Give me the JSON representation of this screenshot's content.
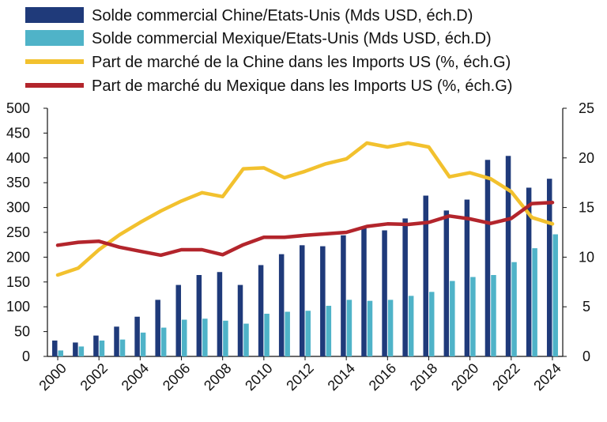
{
  "chart_data": {
    "type": "bar+line",
    "title": "",
    "xlabel": "",
    "ylabel_left": "",
    "ylabel_right": "",
    "categories": [
      "2000",
      "2001",
      "2002",
      "2003",
      "2004",
      "2005",
      "2006",
      "2007",
      "2008",
      "2009",
      "2010",
      "2011",
      "2012",
      "2013",
      "2014",
      "2015",
      "2016",
      "2017",
      "2018",
      "2019",
      "2020",
      "2021",
      "2022",
      "2023",
      "2024"
    ],
    "x_tick_labels": [
      "2000",
      "2002",
      "2004",
      "2006",
      "2008",
      "2010",
      "2012",
      "2014",
      "2016",
      "2018",
      "2020",
      "2022",
      "2024"
    ],
    "left_axis": {
      "min": 0,
      "max": 500,
      "ticks": [
        "0",
        "50",
        "100",
        "150",
        "200",
        "250",
        "300",
        "350",
        "400",
        "450",
        "500"
      ]
    },
    "right_axis": {
      "min": 0,
      "max": 25,
      "ticks": [
        "0",
        "5",
        "10",
        "15",
        "20",
        "25"
      ]
    },
    "grid": false,
    "legend_position": "top",
    "series": [
      {
        "name": "Solde commercial Chine/Etats-Unis (Mds USD, éch.D)",
        "kind": "bar",
        "axis": "right",
        "color": "#1f3a7a",
        "values": [
          1.6,
          1.4,
          2.1,
          3.0,
          4.0,
          5.7,
          7.2,
          8.2,
          8.5,
          7.2,
          9.2,
          10.3,
          11.2,
          11.1,
          12.2,
          13.0,
          12.7,
          13.9,
          16.2,
          14.7,
          15.8,
          19.8,
          20.2,
          17.0,
          17.9
        ]
      },
      {
        "name": "Solde commercial Mexique/Etats-Unis (Mds USD, éch.D)",
        "kind": "bar",
        "axis": "right",
        "color": "#4fb3c8",
        "values": [
          0.6,
          1.0,
          1.6,
          1.7,
          2.4,
          2.9,
          3.7,
          3.8,
          3.6,
          3.3,
          4.3,
          4.5,
          4.6,
          5.1,
          5.7,
          5.6,
          5.7,
          6.1,
          6.5,
          7.6,
          8.0,
          8.2,
          9.5,
          10.9,
          12.3
        ]
      },
      {
        "name": "Part de marché de la Chine dans les Imports US (%, éch.G)",
        "kind": "line",
        "axis": "left",
        "color": "#f2c12e",
        "values": [
          164,
          178,
          215,
          245,
          270,
          293,
          313,
          330,
          322,
          378,
          380,
          360,
          373,
          388,
          398,
          430,
          422,
          430,
          422,
          362,
          370,
          358,
          332,
          280,
          267
        ]
      },
      {
        "name": "Part de marché du Mexique dans les Imports US (%, éch.G)",
        "kind": "line",
        "axis": "left",
        "color": "#b3252c",
        "values": [
          224,
          230,
          232,
          220,
          212,
          204,
          215,
          215,
          205,
          225,
          240,
          240,
          244,
          247,
          250,
          262,
          267,
          266,
          270,
          283,
          277,
          268,
          278,
          308,
          310
        ]
      }
    ]
  }
}
